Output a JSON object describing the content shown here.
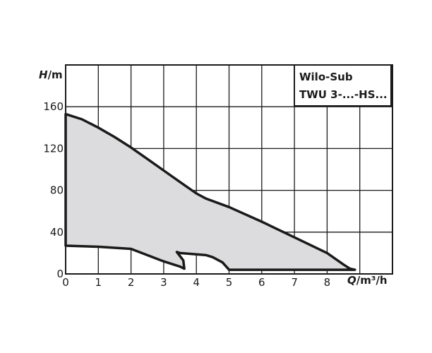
{
  "chart_data": {
    "type": "area",
    "title_lines": [
      "Wilo-Sub",
      "TWU 3-...-HS..."
    ],
    "xlabel": {
      "italic": "Q",
      "unit": "/m³/h"
    },
    "ylabel": {
      "italic": "H",
      "unit": "/m"
    },
    "xlim": [
      0,
      10
    ],
    "ylim": [
      0,
      200
    ],
    "xticks": [
      0,
      1,
      2,
      3,
      4,
      5,
      6,
      7,
      8
    ],
    "yticks": [
      0,
      40,
      80,
      120,
      160
    ],
    "x_grid": [
      0,
      1,
      2,
      3,
      4,
      5,
      6,
      7,
      8,
      9,
      10
    ],
    "y_grid": [
      0,
      40,
      80,
      120,
      160,
      200
    ],
    "grid": true,
    "colors": {
      "fill": "#dcdcde",
      "line": "#1a1a1a",
      "grid": "#1a1a1a"
    },
    "operating_range": [
      [
        0,
        153
      ],
      [
        0.5,
        148
      ],
      [
        1,
        140
      ],
      [
        1.5,
        131
      ],
      [
        2,
        121
      ],
      [
        2.5,
        110
      ],
      [
        3,
        99
      ],
      [
        3.5,
        88
      ],
      [
        4,
        77
      ],
      [
        4.3,
        72
      ],
      [
        5,
        64
      ],
      [
        6,
        50
      ],
      [
        7,
        35
      ],
      [
        8,
        20
      ],
      [
        8.5,
        9
      ],
      [
        8.7,
        5
      ],
      [
        8.85,
        4
      ],
      [
        5,
        4
      ],
      [
        4.8,
        11
      ],
      [
        4.5,
        16
      ],
      [
        4.3,
        18
      ],
      [
        3.5,
        20
      ],
      [
        3.4,
        21
      ],
      [
        3.6,
        13
      ],
      [
        3.63,
        5
      ],
      [
        3.5,
        7
      ],
      [
        3,
        12
      ],
      [
        2,
        24
      ],
      [
        1,
        26
      ],
      [
        0,
        27
      ]
    ]
  }
}
